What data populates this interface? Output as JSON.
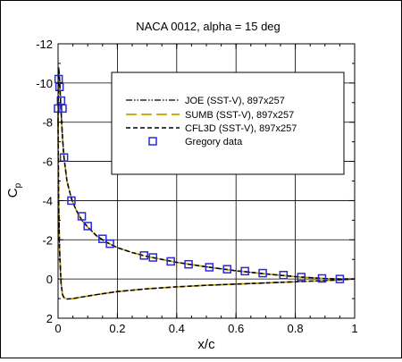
{
  "chart_data": {
    "type": "line",
    "title": "NACA 0012, alpha = 15 deg",
    "xlabel": "x/c",
    "ylabel": "C",
    "ylabel_subscript": "p",
    "xlim": [
      0,
      1
    ],
    "ylim": [
      2,
      -12
    ],
    "y_inverted": true,
    "grid": true,
    "legend_position": "top-right",
    "x_ticks": [
      0,
      0.2,
      0.4,
      0.6,
      0.8,
      1
    ],
    "x_tick_labels": [
      "0",
      "0.2",
      "0.4",
      "0.6",
      "0.8",
      "1"
    ],
    "y_ticks": [
      -12,
      -10,
      -8,
      -6,
      -4,
      -2,
      0,
      2
    ],
    "y_tick_labels": [
      "-12",
      "-10",
      "-8",
      "-6",
      "-4",
      "-2",
      "0",
      "2"
    ],
    "series": [
      {
        "name": "JOE (SST-V), 897x257",
        "style": "dashdotdot",
        "color": "#000000",
        "upper": {
          "x": [
            0,
            0.002,
            0.005,
            0.01,
            0.015,
            0.02,
            0.03,
            0.045,
            0.06,
            0.08,
            0.1,
            0.13,
            0.16,
            0.2,
            0.25,
            0.3,
            0.35,
            0.4,
            0.5,
            0.6,
            0.7,
            0.8,
            0.9,
            0.95,
            1.0
          ],
          "y": [
            -8.0,
            -10.8,
            -10.2,
            -8.6,
            -7.2,
            -6.2,
            -5.0,
            -4.1,
            -3.55,
            -3.0,
            -2.65,
            -2.2,
            -1.9,
            -1.6,
            -1.35,
            -1.15,
            -1.0,
            -0.85,
            -0.62,
            -0.42,
            -0.26,
            -0.12,
            -0.02,
            0.0,
            0.0
          ]
        },
        "lower": {
          "x": [
            0,
            0.002,
            0.005,
            0.01,
            0.015,
            0.02,
            0.03,
            0.05,
            0.08,
            0.12,
            0.2,
            0.3,
            0.4,
            0.5,
            0.6,
            0.7,
            0.8,
            0.9,
            1.0
          ],
          "y": [
            -8.0,
            -4.0,
            -1.5,
            0.2,
            0.8,
            0.95,
            1.02,
            1.0,
            0.92,
            0.82,
            0.64,
            0.5,
            0.4,
            0.32,
            0.26,
            0.2,
            0.14,
            0.08,
            0.0
          ]
        }
      },
      {
        "name": "SUMB (SST-V), 897x257",
        "style": "long-dash",
        "color": "#c8a000",
        "upper": {
          "x": [
            0,
            0.002,
            0.005,
            0.01,
            0.015,
            0.02,
            0.03,
            0.045,
            0.06,
            0.08,
            0.1,
            0.13,
            0.16,
            0.2,
            0.25,
            0.3,
            0.35,
            0.4,
            0.5,
            0.6,
            0.7,
            0.8,
            0.9,
            0.95,
            1.0
          ],
          "y": [
            -8.0,
            -10.8,
            -10.2,
            -8.6,
            -7.2,
            -6.2,
            -5.0,
            -4.1,
            -3.55,
            -3.0,
            -2.65,
            -2.2,
            -1.9,
            -1.6,
            -1.35,
            -1.15,
            -1.0,
            -0.85,
            -0.62,
            -0.42,
            -0.26,
            -0.12,
            -0.02,
            0.0,
            0.0
          ]
        },
        "lower": {
          "x": [
            0,
            0.002,
            0.005,
            0.01,
            0.015,
            0.02,
            0.03,
            0.05,
            0.08,
            0.12,
            0.2,
            0.3,
            0.4,
            0.5,
            0.6,
            0.7,
            0.8,
            0.9,
            1.0
          ],
          "y": [
            -8.0,
            -4.0,
            -1.5,
            0.2,
            0.8,
            0.95,
            1.02,
            1.0,
            0.92,
            0.82,
            0.64,
            0.5,
            0.4,
            0.32,
            0.26,
            0.2,
            0.14,
            0.08,
            0.0
          ]
        }
      },
      {
        "name": "CFL3D (SST-V), 897x257",
        "style": "dashed",
        "color": "#000000",
        "upper": {
          "x": [
            0,
            0.002,
            0.005,
            0.01,
            0.015,
            0.02,
            0.03,
            0.045,
            0.06,
            0.08,
            0.1,
            0.13,
            0.16,
            0.2,
            0.25,
            0.3,
            0.35,
            0.4,
            0.5,
            0.6,
            0.7,
            0.8,
            0.9,
            0.95,
            1.0
          ],
          "y": [
            -8.0,
            -10.8,
            -10.2,
            -8.6,
            -7.2,
            -6.2,
            -5.0,
            -4.1,
            -3.55,
            -3.0,
            -2.65,
            -2.2,
            -1.9,
            -1.6,
            -1.35,
            -1.15,
            -1.0,
            -0.85,
            -0.62,
            -0.42,
            -0.26,
            -0.12,
            -0.02,
            0.0,
            0.0
          ]
        },
        "lower": {
          "x": [
            0,
            0.002,
            0.005,
            0.01,
            0.015,
            0.02,
            0.03,
            0.05,
            0.08,
            0.12,
            0.2,
            0.3,
            0.4,
            0.5,
            0.6,
            0.7,
            0.8,
            0.9,
            1.0
          ],
          "y": [
            -8.0,
            -4.0,
            -1.5,
            0.2,
            0.8,
            0.95,
            1.02,
            1.0,
            0.92,
            0.82,
            0.64,
            0.5,
            0.4,
            0.32,
            0.26,
            0.2,
            0.14,
            0.08,
            0.0
          ]
        }
      },
      {
        "name": "Gregory data",
        "style": "open-square-markers",
        "color": "#2a2ad8",
        "x": [
          0.0,
          0.002,
          0.005,
          0.01,
          0.015,
          0.02,
          0.045,
          0.08,
          0.1,
          0.15,
          0.175,
          0.29,
          0.32,
          0.38,
          0.44,
          0.51,
          0.57,
          0.63,
          0.69,
          0.76,
          0.82,
          0.89,
          0.95
        ],
        "y": [
          -8.7,
          -10.2,
          -9.8,
          -9.1,
          -8.7,
          -6.2,
          -4.0,
          -3.2,
          -2.7,
          -2.05,
          -1.8,
          -1.2,
          -1.1,
          -0.9,
          -0.75,
          -0.6,
          -0.5,
          -0.4,
          -0.3,
          -0.2,
          -0.1,
          -0.03,
          0.0
        ]
      }
    ]
  }
}
